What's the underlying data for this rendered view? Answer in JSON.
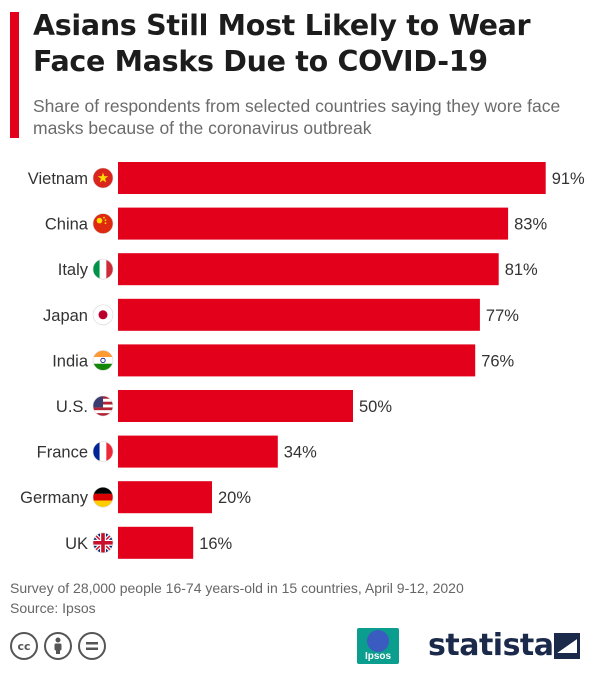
{
  "header": {
    "title": "Asians Still Most Likely to Wear Face Masks Due to COVID-19",
    "subtitle": "Share of respondents from selected countries saying they wore face masks because of the coronavirus outbreak"
  },
  "chart_data": {
    "type": "bar",
    "orientation": "horizontal",
    "categories": [
      "Vietnam",
      "China",
      "Italy",
      "Japan",
      "India",
      "U.S.",
      "France",
      "Germany",
      "UK"
    ],
    "values": [
      91,
      83,
      81,
      77,
      76,
      50,
      34,
      20,
      16
    ],
    "data_labels": [
      "91%",
      "83%",
      "81%",
      "77%",
      "76%",
      "50%",
      "34%",
      "20%",
      "16%"
    ],
    "unit": "%",
    "xlim": [
      0,
      100
    ],
    "grid": false,
    "bar_color": "#e3001b",
    "flag_icons": [
      "vietnam-flag-icon",
      "china-flag-icon",
      "italy-flag-icon",
      "japan-flag-icon",
      "india-flag-icon",
      "us-flag-icon",
      "france-flag-icon",
      "germany-flag-icon",
      "uk-flag-icon"
    ]
  },
  "footer": {
    "note": "Survey of 28,000 people 16-74 years-old in 15 countries, April 9-12, 2020",
    "source": "Source: Ipsos",
    "ipsos_logo_text": "Ipsos",
    "brand": "statista",
    "license_icons": [
      "cc-icon",
      "by-icon",
      "nd-icon"
    ]
  }
}
